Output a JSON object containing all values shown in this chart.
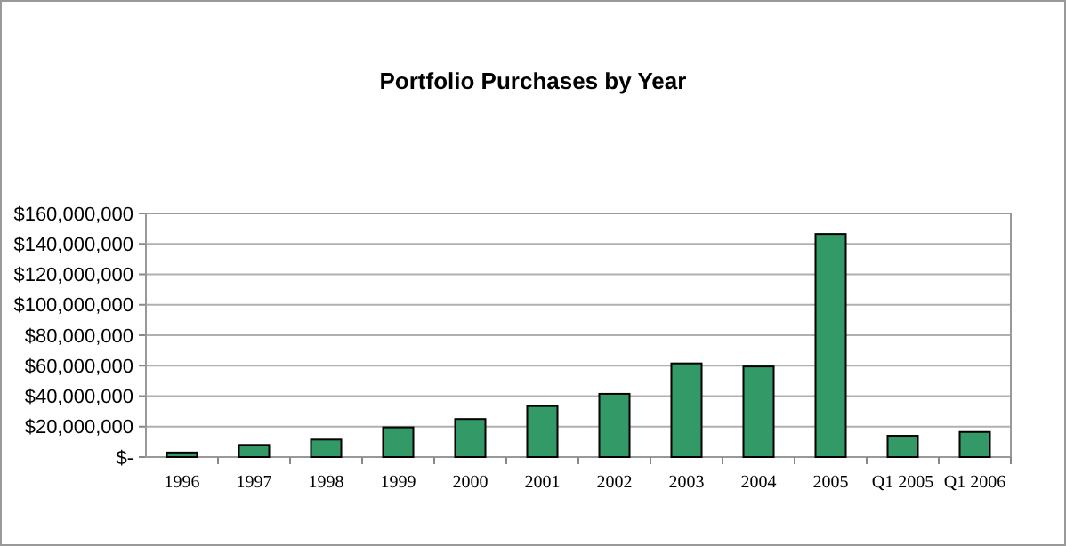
{
  "chart_data": {
    "type": "bar",
    "title": "Portfolio Purchases by Year",
    "categories": [
      "1996",
      "1997",
      "1998",
      "1999",
      "2000",
      "2001",
      "2002",
      "2003",
      "2004",
      "2005",
      "Q1 2005",
      "Q1 2006"
    ],
    "values": [
      3000000,
      8000000,
      11500000,
      19500000,
      25000000,
      33500000,
      41500000,
      61500000,
      59500000,
      146500000,
      14000000,
      16500000
    ],
    "color": "#339966",
    "ylim": [
      0,
      160000000
    ],
    "yticks": [
      {
        "value": 0,
        "label": "$-"
      },
      {
        "value": 20000000,
        "label": "$20,000,000"
      },
      {
        "value": 40000000,
        "label": "$40,000,000"
      },
      {
        "value": 60000000,
        "label": "$60,000,000"
      },
      {
        "value": 80000000,
        "label": "$80,000,000"
      },
      {
        "value": 100000000,
        "label": "$100,000,000"
      },
      {
        "value": 120000000,
        "label": "$120,000,000"
      },
      {
        "value": 140000000,
        "label": "$140,000,000"
      },
      {
        "value": 160000000,
        "label": "$160,000,000"
      }
    ],
    "grid": true
  }
}
